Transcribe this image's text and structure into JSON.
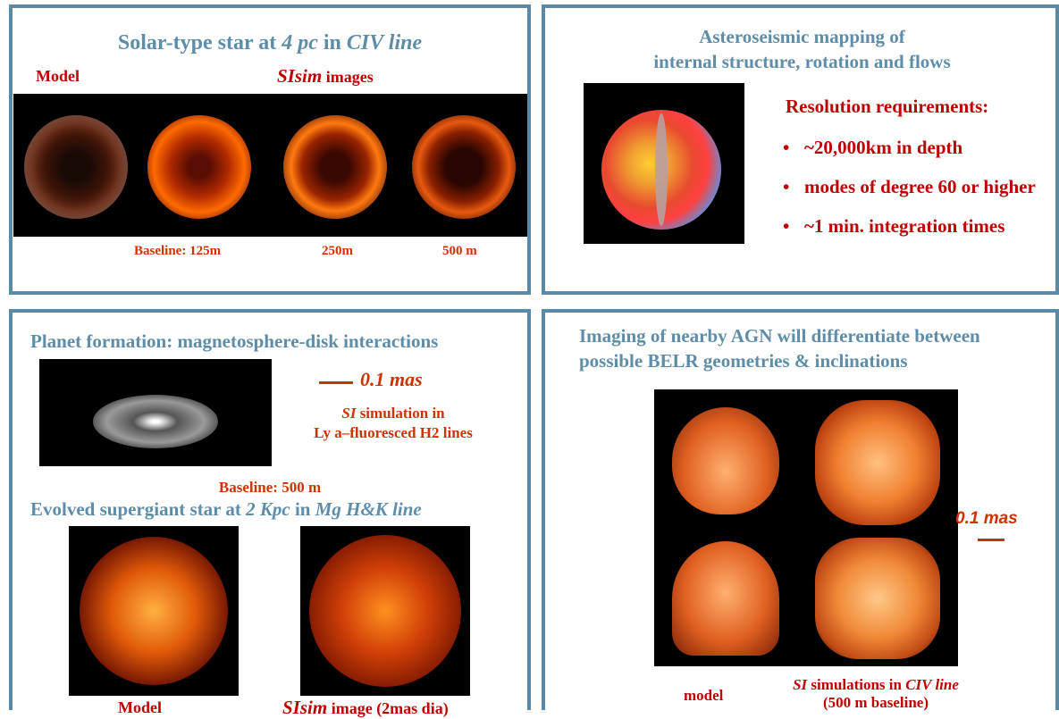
{
  "panel1": {
    "title_a": "Solar-type star at ",
    "title_b": "4 pc",
    "title_c": " in ",
    "title_d": "CIV line",
    "model_label": "Model",
    "sisim_a": "SIsim",
    "sisim_b": " images",
    "baseline_label": "Baseline:  125m",
    "b250": "250m",
    "b500": "500 m"
  },
  "panel2": {
    "title_line1": "Asteroseismic mapping of",
    "title_line2": "internal structure, rotation and flows",
    "req_heading": "Resolution requirements:",
    "items": [
      "~20,000km in depth",
      "modes of degree 60 or higher",
      "~1 min. integration times"
    ]
  },
  "panel3": {
    "title1": "Planet formation: magnetosphere-disk interactions",
    "scale_label": "0.1 mas",
    "si_a": "SI",
    "si_b": " simulation in",
    "si_line2": "Ly a–fluoresced H2 lines",
    "baseline": "Baseline: 500 m",
    "title2_a": "Evolved supergiant star at ",
    "title2_b": "2 Kpc",
    "title2_c": " in ",
    "title2_d": "Mg H&K line",
    "model_label": "Model",
    "sisim_a": "SIsim",
    "sisim_b": " image (2mas dia)"
  },
  "panel4": {
    "title_line1": "Imaging of nearby AGN will differentiate between",
    "title_line2": "possible BELR geometries & inclinations",
    "scale_label": "0.1 mas",
    "model_label": "model",
    "si_a": "SI",
    "si_b": " simulations in ",
    "si_c": "CIV line",
    "si_line2": "(500 m baseline)"
  },
  "colors": {
    "border": "#5b8aa5",
    "title_blue": "#5d8da8",
    "label_red": "#cc3300",
    "text_dark_red": "#c00000"
  }
}
